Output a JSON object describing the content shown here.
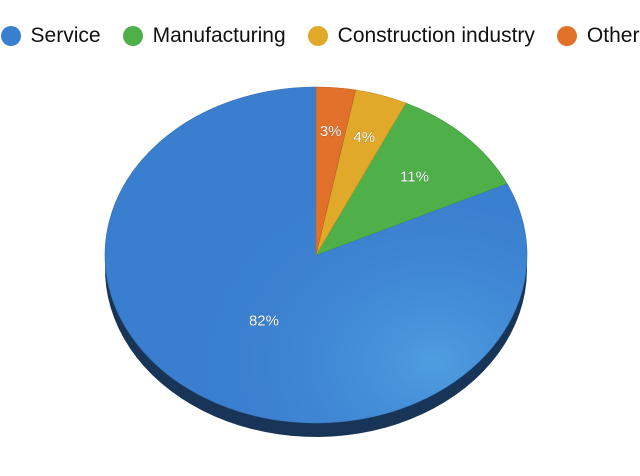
{
  "chart_data": {
    "type": "pie",
    "style": "3d-tilted",
    "legend_position": "top",
    "slices": [
      {
        "name": "Service",
        "value": 82,
        "label": "82%",
        "color": "#3a7fcf"
      },
      {
        "name": "Manufacturing",
        "value": 11,
        "label": "11%",
        "color": "#4fb04a"
      },
      {
        "name": "Construction industry",
        "value": 4,
        "label": "4%",
        "color": "#e0a92a"
      },
      {
        "name": "Other",
        "value": 3,
        "label": "3%",
        "color": "#e0702a"
      }
    ]
  }
}
